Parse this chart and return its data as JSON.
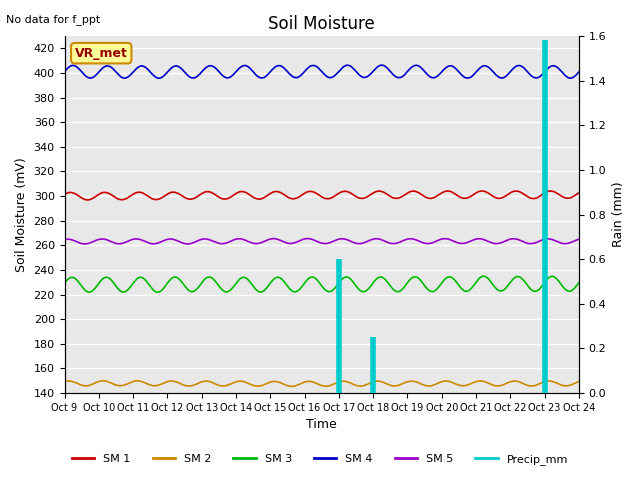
{
  "title": "Soil Moisture",
  "no_data_text": "No data for f_ppt",
  "xlabel": "Time",
  "ylabel_left": "Soil Moisture (mV)",
  "ylabel_right": "Rain (mm)",
  "ylim_left": [
    140,
    430
  ],
  "ylim_right": [
    0.0,
    1.6
  ],
  "yticks_left": [
    140,
    160,
    180,
    200,
    220,
    240,
    260,
    280,
    300,
    320,
    340,
    360,
    380,
    400,
    420
  ],
  "yticks_right": [
    0.0,
    0.2,
    0.4,
    0.6,
    0.8,
    1.0,
    1.2,
    1.4,
    1.6
  ],
  "xtick_labels": [
    "Oct 9",
    "Oct 10",
    "Oct 11",
    "Oct 12",
    "Oct 13",
    "Oct 14",
    "Oct 15",
    "Oct 16",
    "Oct 17",
    "Oct 18",
    "Oct 19",
    "Oct 20",
    "Oct 21",
    "Oct 22",
    "Oct 23",
    "Oct 24"
  ],
  "background_color": "#e8e8e8",
  "grid_color": "white",
  "sm1_color": "#cc0000",
  "sm2_color": "#cc8800",
  "sm3_color": "#00bb00",
  "sm4_color": "#0000cc",
  "sm5_color": "#9900cc",
  "precip_color": "#00cccc",
  "legend_label_text": "VR_met",
  "legend_label_bg": "#ffff99",
  "legend_label_border": "#cc8800",
  "precip_spikes": [
    {
      "day": 8,
      "val": 0.6
    },
    {
      "day": 9,
      "val": 0.25
    },
    {
      "day": 14,
      "val": 1.58
    }
  ]
}
